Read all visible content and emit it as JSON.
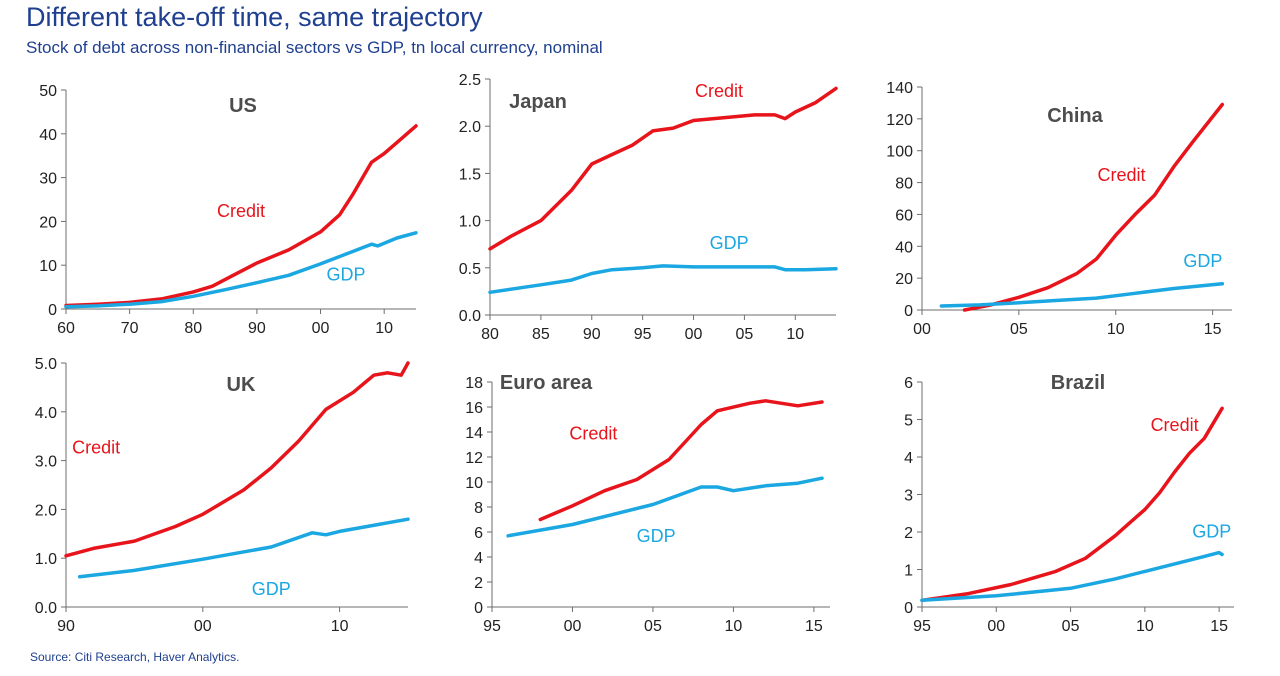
{
  "header": {
    "title": "Different take-off time, same trajectory",
    "subtitle": "Stock of debt across non-financial sectors vs GDP, tn local currency, nominal"
  },
  "footer": {
    "source": "Source: Citi Research, Haver Analytics."
  },
  "colors": {
    "credit": "#e8141b",
    "gdp": "#1ba7e1",
    "title": "#1f3f8f"
  },
  "chart_data": [
    {
      "type": "line",
      "title": "US",
      "xlim": [
        1960,
        2015
      ],
      "ylim": [
        0,
        50
      ],
      "xticks": [
        1960,
        1970,
        1980,
        1990,
        2000,
        2010
      ],
      "xtick_labels": [
        "60",
        "70",
        "80",
        "90",
        "00",
        "10"
      ],
      "yticks": [
        0,
        10,
        20,
        30,
        40,
        50
      ],
      "ytick_labels": [
        "0",
        "10",
        "20",
        "30",
        "40",
        "50"
      ],
      "series": [
        {
          "name": "Credit",
          "label_at": [
            1987.5,
            21
          ],
          "x": [
            1960,
            1965,
            1970,
            1975,
            1980,
            1983,
            1986,
            1990,
            1995,
            2000,
            2003,
            2005,
            2008,
            2010,
            2012,
            2015
          ],
          "y": [
            0.8,
            1.1,
            1.5,
            2.3,
            3.9,
            5.2,
            7.5,
            10.5,
            13.5,
            17.6,
            21.5,
            26,
            33.5,
            35.5,
            38,
            41.8
          ]
        },
        {
          "name": "GDP",
          "label_at": [
            2004,
            6.5
          ],
          "x": [
            1960,
            1965,
            1970,
            1975,
            1980,
            1985,
            1990,
            1995,
            2000,
            2005,
            2008,
            2009,
            2010,
            2012,
            2015
          ],
          "y": [
            0.5,
            0.7,
            1.1,
            1.7,
            2.9,
            4.4,
            6.0,
            7.7,
            10.3,
            13.1,
            14.8,
            14.4,
            15.0,
            16.2,
            17.4
          ]
        }
      ]
    },
    {
      "type": "line",
      "title": "Japan",
      "xlim": [
        1980,
        2014
      ],
      "ylim": [
        0,
        2.5
      ],
      "xticks": [
        1980,
        1985,
        1990,
        1995,
        2000,
        2005,
        2010
      ],
      "xtick_labels": [
        "80",
        "85",
        "90",
        "95",
        "00",
        "05",
        "10"
      ],
      "yticks": [
        0,
        0.5,
        1.0,
        1.5,
        2.0,
        2.5
      ],
      "ytick_labels": [
        "0.0",
        "0.5",
        "1.0",
        "1.5",
        "2.0",
        "2.5"
      ],
      "series": [
        {
          "name": "Credit",
          "label_at": [
            2002.5,
            2.31
          ],
          "x": [
            1980,
            1982,
            1985,
            1988,
            1990,
            1992,
            1994,
            1996,
            1998,
            2000,
            2002,
            2004,
            2006,
            2008,
            2009,
            2010,
            2012,
            2014
          ],
          "y": [
            0.7,
            0.83,
            1.0,
            1.32,
            1.6,
            1.7,
            1.8,
            1.95,
            1.98,
            2.06,
            2.08,
            2.1,
            2.12,
            2.12,
            2.08,
            2.15,
            2.25,
            2.4
          ]
        },
        {
          "name": "GDP",
          "label_at": [
            2003.5,
            0.7
          ],
          "x": [
            1980,
            1985,
            1988,
            1990,
            1992,
            1995,
            1997,
            2000,
            2005,
            2008,
            2009,
            2011,
            2014
          ],
          "y": [
            0.24,
            0.32,
            0.37,
            0.44,
            0.48,
            0.5,
            0.52,
            0.51,
            0.51,
            0.51,
            0.48,
            0.48,
            0.49
          ]
        }
      ]
    },
    {
      "type": "line",
      "title": "China",
      "xlim": [
        2000,
        2016
      ],
      "ylim": [
        0,
        140
      ],
      "xticks": [
        2000,
        2005,
        2010,
        2015
      ],
      "xtick_labels": [
        "00",
        "05",
        "10",
        "15"
      ],
      "yticks": [
        0,
        20,
        40,
        60,
        80,
        100,
        120,
        140
      ],
      "ytick_labels": [
        "0",
        "20",
        "40",
        "60",
        "80",
        "100",
        "120",
        "140"
      ],
      "series": [
        {
          "name": "Credit",
          "label_at": [
            2010.3,
            81
          ],
          "x": [
            2002.2,
            2003.5,
            2005,
            2006.5,
            2008,
            2009,
            2010,
            2011,
            2012,
            2013,
            2014,
            2015.5
          ],
          "y": [
            0,
            3,
            8,
            14,
            23,
            32,
            47,
            60,
            72,
            90,
            106,
            129
          ]
        },
        {
          "name": "GDP",
          "label_at": [
            2014.5,
            27
          ],
          "x": [
            2001,
            2003,
            2005,
            2007,
            2009,
            2011,
            2013,
            2015.5
          ],
          "y": [
            2.5,
            3.2,
            4.5,
            6.0,
            7.5,
            10.5,
            13.5,
            16.5
          ]
        }
      ]
    },
    {
      "type": "line",
      "title": "UK",
      "xlim": [
        1990,
        2015
      ],
      "ylim": [
        0,
        5.0
      ],
      "xticks": [
        1990,
        2000,
        2010
      ],
      "xtick_labels": [
        "90",
        "00",
        "10"
      ],
      "yticks": [
        0,
        1.0,
        2.0,
        3.0,
        4.0,
        5.0
      ],
      "ytick_labels": [
        "0.0",
        "1.0",
        "2.0",
        "3.0",
        "4.0",
        "5.0"
      ],
      "series": [
        {
          "name": "Credit",
          "label_at": [
            1992.2,
            3.15
          ],
          "x": [
            1990,
            1992,
            1995,
            1998,
            2000,
            2003,
            2005,
            2007,
            2009,
            2011,
            2012.5,
            2013.5,
            2014.5,
            2015
          ],
          "y": [
            1.05,
            1.2,
            1.35,
            1.65,
            1.9,
            2.4,
            2.85,
            3.4,
            4.05,
            4.4,
            4.75,
            4.8,
            4.75,
            5.0
          ]
        },
        {
          "name": "GDP",
          "label_at": [
            2005,
            0.25
          ],
          "x": [
            1991,
            1995,
            2000,
            2005,
            2008,
            2009,
            2010,
            2012,
            2015
          ],
          "y": [
            0.62,
            0.75,
            0.98,
            1.23,
            1.52,
            1.48,
            1.55,
            1.65,
            1.8
          ]
        }
      ]
    },
    {
      "type": "line",
      "title": "Euro area",
      "xlim": [
        1995,
        2016
      ],
      "ylim": [
        0,
        18
      ],
      "xticks": [
        1995,
        2000,
        2005,
        2010,
        2015
      ],
      "xtick_labels": [
        "95",
        "00",
        "05",
        "10",
        "15"
      ],
      "yticks": [
        0,
        2,
        4,
        6,
        8,
        10,
        12,
        14,
        16,
        18
      ],
      "ytick_labels": [
        "0",
        "2",
        "4",
        "6",
        "8",
        "10",
        "12",
        "14",
        "16",
        "18"
      ],
      "series": [
        {
          "name": "Credit",
          "label_at": [
            2001.3,
            13.4
          ],
          "x": [
            1998,
            2000,
            2002,
            2004,
            2006,
            2008,
            2009,
            2011,
            2012,
            2014,
            2015.5
          ],
          "y": [
            7.0,
            8.1,
            9.3,
            10.2,
            11.8,
            14.6,
            15.7,
            16.3,
            16.5,
            16.1,
            16.4
          ]
        },
        {
          "name": "GDP",
          "label_at": [
            2005.2,
            5.2
          ],
          "x": [
            1996,
            2000,
            2005,
            2008,
            2009,
            2010,
            2012,
            2014,
            2015.5
          ],
          "y": [
            5.7,
            6.6,
            8.2,
            9.6,
            9.6,
            9.3,
            9.7,
            9.9,
            10.3
          ]
        }
      ]
    },
    {
      "type": "line",
      "title": "Brazil",
      "xlim": [
        1995,
        2016
      ],
      "ylim": [
        0,
        6
      ],
      "xticks": [
        1995,
        2000,
        2005,
        2010,
        2015
      ],
      "xtick_labels": [
        "95",
        "00",
        "05",
        "10",
        "15"
      ],
      "yticks": [
        0,
        1,
        2,
        3,
        4,
        5,
        6
      ],
      "ytick_labels": [
        "0",
        "1",
        "2",
        "3",
        "4",
        "5",
        "6"
      ],
      "series": [
        {
          "name": "Credit",
          "label_at": [
            2012,
            4.7
          ],
          "x": [
            1995,
            1998,
            2001,
            2004,
            2006,
            2008,
            2009,
            2010,
            2011,
            2012,
            2013,
            2014,
            2015.2
          ],
          "y": [
            0.18,
            0.35,
            0.6,
            0.95,
            1.3,
            1.9,
            2.25,
            2.6,
            3.05,
            3.6,
            4.1,
            4.5,
            5.3
          ]
        },
        {
          "name": "GDP",
          "label_at": [
            2014.5,
            1.85
          ],
          "x": [
            1995,
            2000,
            2005,
            2008,
            2010,
            2012,
            2014,
            2015,
            2015.2
          ],
          "y": [
            0.18,
            0.3,
            0.5,
            0.75,
            0.95,
            1.15,
            1.35,
            1.45,
            1.4
          ]
        }
      ]
    }
  ]
}
